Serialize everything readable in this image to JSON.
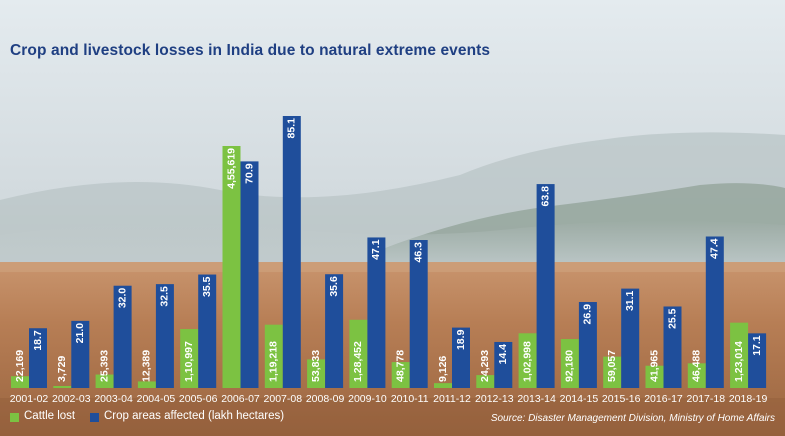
{
  "colors": {
    "cattle": "#7cc242",
    "crop": "#1f4e9b",
    "title": "#1f3f82",
    "text_on_bar": "#ffffff"
  },
  "chart_data": {
    "type": "bar",
    "title": "Crop and livestock losses in India due to natural extreme events",
    "categories": [
      "2001-02",
      "2002-03",
      "2003-04",
      "2004-05",
      "2005-06",
      "2006-07",
      "2007-08",
      "2008-09",
      "2009-10",
      "2010-11",
      "2011-12",
      "2012-13",
      "2013-14",
      "2014-15",
      "2015-16",
      "2016-17",
      "2017-18",
      "2018-19"
    ],
    "series": [
      {
        "name": "Cattle lost",
        "values": [
          22169,
          3729,
          25393,
          12389,
          110997,
          455619,
          119218,
          53833,
          128452,
          48778,
          9126,
          24293,
          102998,
          92180,
          59057,
          41965,
          46488,
          123014
        ],
        "labels": [
          "22,169",
          "3,729",
          "25,393",
          "12,389",
          "1,10,997",
          "4,55,619",
          "1,19,218",
          "53,833",
          "1,28,452",
          "48,778",
          "9,126",
          "24,293",
          "1,02,998",
          "92,180",
          "59,057",
          "41,965",
          "46,488",
          "1,23,014"
        ]
      },
      {
        "name": "Crop areas affected (lakh hectares)",
        "values": [
          18.7,
          21.0,
          32.0,
          32.5,
          35.5,
          70.9,
          85.1,
          35.6,
          47.1,
          46.3,
          18.9,
          14.4,
          63.8,
          26.9,
          31.1,
          25.5,
          47.4,
          17.1
        ],
        "labels": [
          "18.7",
          "21.0",
          "32.0",
          "32.5",
          "35.5",
          "70.9",
          "85.1",
          "35.6",
          "47.1",
          "46.3",
          "18.9",
          "14.4",
          "63.8",
          "26.9",
          "31.1",
          "25.5",
          "47.4",
          "17.1"
        ]
      }
    ],
    "legend_position": "bottom-left",
    "grid": false,
    "source": "Source: Disaster Management Division, Ministry of Home Affairs"
  }
}
